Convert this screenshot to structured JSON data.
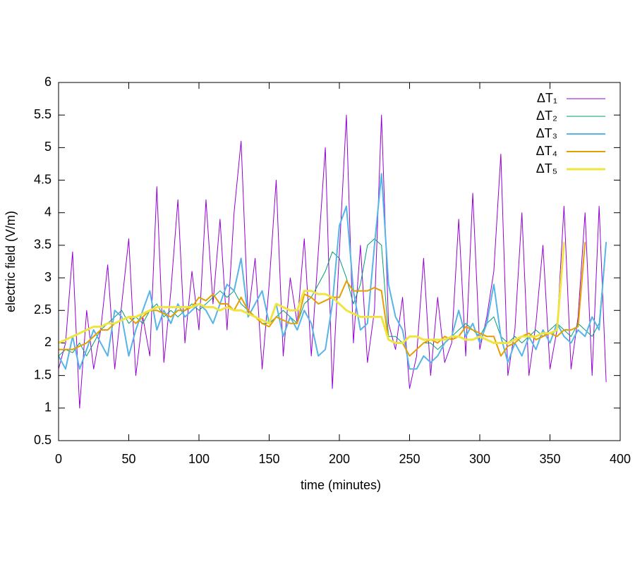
{
  "chart_data": {
    "type": "line",
    "xlabel": "time (minutes)",
    "ylabel": "electric field (V/m)",
    "xlim": [
      0,
      400
    ],
    "xticks": [
      0,
      50,
      100,
      150,
      200,
      250,
      300,
      350,
      400
    ],
    "ylim": [
      0.5,
      6
    ],
    "yticks": [
      0.5,
      1,
      1.5,
      2,
      2.5,
      3,
      3.5,
      4,
      4.5,
      5,
      5.5,
      6
    ],
    "legend": "top-right",
    "grid": false,
    "x": [
      0,
      5,
      10,
      15,
      20,
      25,
      30,
      35,
      40,
      45,
      50,
      55,
      60,
      65,
      70,
      75,
      80,
      85,
      90,
      95,
      100,
      105,
      110,
      115,
      120,
      125,
      130,
      135,
      140,
      145,
      150,
      155,
      160,
      165,
      170,
      175,
      180,
      185,
      190,
      195,
      200,
      205,
      210,
      215,
      220,
      225,
      230,
      235,
      240,
      245,
      250,
      255,
      260,
      265,
      270,
      275,
      280,
      285,
      290,
      295,
      300,
      305,
      310,
      315,
      320,
      325,
      330,
      335,
      340,
      345,
      350,
      355,
      360,
      365,
      370,
      375,
      380,
      385,
      390
    ],
    "series": [
      {
        "name": "ΔT₁",
        "color": "#9400d3",
        "width": 1,
        "values": [
          1.6,
          2.0,
          3.4,
          1.0,
          2.5,
          1.6,
          2.2,
          3.2,
          1.6,
          2.6,
          3.6,
          1.5,
          2.4,
          1.8,
          4.4,
          1.7,
          2.8,
          4.2,
          2.0,
          3.1,
          2.2,
          4.2,
          2.6,
          3.9,
          2.2,
          4.0,
          5.1,
          2.4,
          3.3,
          1.6,
          2.9,
          4.5,
          1.8,
          3.0,
          2.3,
          3.6,
          1.8,
          3.4,
          5.0,
          1.3,
          3.4,
          5.5,
          2.0,
          3.5,
          1.7,
          2.5,
          5.5,
          2.3,
          1.9,
          2.7,
          1.3,
          1.8,
          3.3,
          1.5,
          2.7,
          1.7,
          2.0,
          3.9,
          1.8,
          4.3,
          1.9,
          2.4,
          3.1,
          4.9,
          1.5,
          2.2,
          4.0,
          1.5,
          2.3,
          3.5,
          1.6,
          2.2,
          4.1,
          1.6,
          2.4,
          4.0,
          1.5,
          4.1,
          1.4
        ]
      },
      {
        "name": "ΔT₂",
        "color": "#009e73",
        "width": 1,
        "values": [
          1.8,
          1.9,
          1.85,
          2.0,
          1.8,
          2.0,
          2.2,
          2.3,
          2.4,
          2.5,
          2.3,
          2.4,
          2.3,
          2.5,
          2.6,
          2.4,
          2.5,
          2.4,
          2.5,
          2.6,
          2.5,
          2.6,
          2.7,
          2.8,
          2.7,
          2.8,
          2.6,
          2.5,
          2.4,
          2.3,
          2.3,
          2.4,
          2.5,
          2.4,
          2.3,
          2.6,
          2.7,
          2.9,
          3.1,
          3.4,
          3.3,
          3.0,
          2.6,
          2.9,
          3.5,
          3.6,
          3.5,
          2.1,
          2.1,
          2.0,
          1.8,
          1.9,
          2.0,
          2.0,
          1.9,
          2.0,
          2.1,
          2.2,
          2.3,
          2.2,
          2.1,
          2.3,
          2.4,
          2.1,
          2.0,
          2.1,
          2.0,
          2.1,
          2.2,
          2.1,
          2.2,
          2.3,
          2.2,
          2.1,
          2.3,
          2.2,
          2.1,
          2.3,
          3.55
        ]
      },
      {
        "name": "ΔT₃",
        "color": "#56b4e9",
        "width": 2,
        "values": [
          1.8,
          1.6,
          2.1,
          1.6,
          1.9,
          2.2,
          2.0,
          1.8,
          2.5,
          2.4,
          1.8,
          2.2,
          2.5,
          2.8,
          2.2,
          2.5,
          2.3,
          2.6,
          2.4,
          2.5,
          2.6,
          2.5,
          2.3,
          2.6,
          2.9,
          2.8,
          3.3,
          2.4,
          2.6,
          2.8,
          2.3,
          2.6,
          2.1,
          2.4,
          2.2,
          2.5,
          2.3,
          1.8,
          1.9,
          2.6,
          3.8,
          4.1,
          2.8,
          2.2,
          2.3,
          3.5,
          4.6,
          2.9,
          2.4,
          2.2,
          1.6,
          1.6,
          1.8,
          1.7,
          1.8,
          2.0,
          2.1,
          2.5,
          2.1,
          2.3,
          2.0,
          2.3,
          2.9,
          2.1,
          1.7,
          2.0,
          1.8,
          2.1,
          1.9,
          2.2,
          2.0,
          2.3,
          2.1,
          2.0,
          2.2,
          2.1,
          2.4,
          2.2,
          3.55
        ]
      },
      {
        "name": "ΔT₄",
        "color": "#e69f00",
        "width": 2,
        "values": [
          1.9,
          1.9,
          1.9,
          1.95,
          2.0,
          2.1,
          2.2,
          2.2,
          2.3,
          2.35,
          2.4,
          2.3,
          2.4,
          2.5,
          2.5,
          2.45,
          2.4,
          2.5,
          2.5,
          2.55,
          2.7,
          2.65,
          2.75,
          2.6,
          2.6,
          2.5,
          2.7,
          2.5,
          2.4,
          2.3,
          2.25,
          2.4,
          2.35,
          2.3,
          2.3,
          2.75,
          2.7,
          2.6,
          2.65,
          2.7,
          2.7,
          2.95,
          2.8,
          2.8,
          2.8,
          2.85,
          2.8,
          2.05,
          2.0,
          2.0,
          1.8,
          1.9,
          2.0,
          2.05,
          2.0,
          2.1,
          2.05,
          2.1,
          2.25,
          2.2,
          2.15,
          2.1,
          2.1,
          1.8,
          1.95,
          2.0,
          2.1,
          2.15,
          2.05,
          2.1,
          2.15,
          2.1,
          2.2,
          2.2,
          2.25,
          3.55,
          null,
          null,
          null
        ]
      },
      {
        "name": "ΔT₅",
        "color": "#f0e442",
        "width": 3,
        "values": [
          2.0,
          2.05,
          2.1,
          2.15,
          2.2,
          2.25,
          2.25,
          2.3,
          2.3,
          2.35,
          2.4,
          2.4,
          2.45,
          2.5,
          2.55,
          2.55,
          2.55,
          2.55,
          2.55,
          2.55,
          2.6,
          2.55,
          2.55,
          2.5,
          2.55,
          2.5,
          2.5,
          2.45,
          2.4,
          2.35,
          2.3,
          2.6,
          2.55,
          2.5,
          2.5,
          2.8,
          2.8,
          2.75,
          2.75,
          2.7,
          2.6,
          2.5,
          2.45,
          2.4,
          2.4,
          2.4,
          2.4,
          2.05,
          2.0,
          2.0,
          2.1,
          2.1,
          2.05,
          2.05,
          2.05,
          2.05,
          2.1,
          2.1,
          2.05,
          2.05,
          2.1,
          2.05,
          2.0,
          2.0,
          2.0,
          2.05,
          2.1,
          2.1,
          2.1,
          2.15,
          2.15,
          2.2,
          3.55,
          null,
          null,
          null,
          null,
          null,
          null
        ]
      }
    ]
  }
}
